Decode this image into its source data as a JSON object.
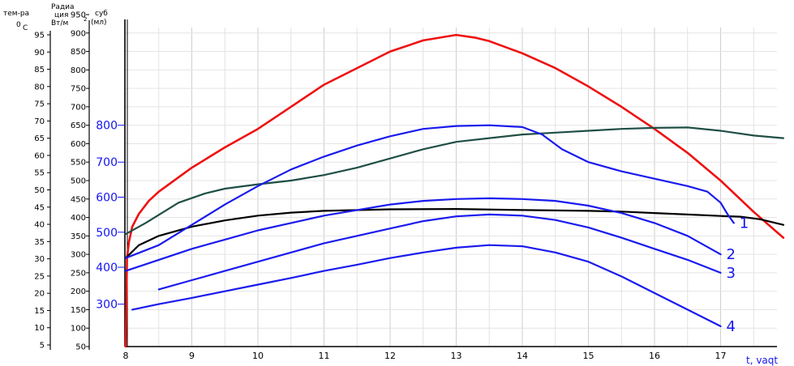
{
  "chart_data": {
    "type": "line",
    "xlabel": "t, vaqt",
    "x_ticks": [
      "8",
      "9",
      "10",
      "11",
      "12",
      "13",
      "14",
      "15",
      "16",
      "17"
    ],
    "xlim": [
      8,
      17.5
    ],
    "headers": {
      "temp": [
        "тем-ра",
        "0",
        "C"
      ],
      "radiation": [
        "Радиа",
        "ция",
        "Вт/м",
        "2"
      ],
      "substance": [
        "cуб",
        "(мл)"
      ]
    },
    "axes": {
      "temperature": {
        "unit": "°C",
        "range": [
          5,
          95
        ],
        "ticks": [
          "95",
          "90",
          "85",
          "80",
          "75",
          "70",
          "65",
          "60",
          "55",
          "50",
          "45",
          "40",
          "35",
          "30",
          "25",
          "20",
          "15",
          "10",
          "5"
        ]
      },
      "radiation": {
        "unit": "Вт/м²",
        "range": [
          50,
          950
        ],
        "ticks": [
          "950",
          "900",
          "850",
          "800",
          "750",
          "700",
          "650",
          "600",
          "550",
          "500",
          "450",
          "400",
          "350",
          "300",
          "250",
          "200",
          "150",
          "100",
          "50"
        ]
      },
      "substance": {
        "unit": "мл",
        "ticks": [
          "800",
          "700",
          "600",
          "500",
          "400",
          "300"
        ]
      }
    },
    "series": [
      {
        "name": "",
        "color": "#ee1111",
        "scale": "radiation",
        "points": [
          [
            8.0,
            50
          ],
          [
            8.02,
            290
          ],
          [
            8.05,
            335
          ],
          [
            8.1,
            375
          ],
          [
            8.2,
            410
          ],
          [
            8.35,
            445
          ],
          [
            8.5,
            470
          ],
          [
            9,
            535
          ],
          [
            9.5,
            590
          ],
          [
            10,
            640
          ],
          [
            10.5,
            700
          ],
          [
            11,
            760
          ],
          [
            11.5,
            805
          ],
          [
            12,
            850
          ],
          [
            12.5,
            880
          ],
          [
            13,
            895
          ],
          [
            13.3,
            887
          ],
          [
            13.5,
            878
          ],
          [
            14,
            845
          ],
          [
            14.5,
            805
          ],
          [
            15,
            755
          ],
          [
            15.5,
            700
          ],
          [
            16,
            640
          ],
          [
            16.5,
            575
          ],
          [
            17,
            500
          ],
          [
            17.5,
            415
          ],
          [
            17.95,
            345
          ]
        ]
      },
      {
        "name": "",
        "color": "#1f4f45",
        "scale": "radiation",
        "points": [
          [
            8.0,
            355
          ],
          [
            8.3,
            385
          ],
          [
            8.8,
            440
          ],
          [
            9.2,
            465
          ],
          [
            9.5,
            478
          ],
          [
            10,
            490
          ],
          [
            10.5,
            500
          ],
          [
            11,
            515
          ],
          [
            11.5,
            535
          ],
          [
            12,
            560
          ],
          [
            12.5,
            585
          ],
          [
            13,
            605
          ],
          [
            13.5,
            615
          ],
          [
            14,
            625
          ],
          [
            14.5,
            630
          ],
          [
            15,
            635
          ],
          [
            15.5,
            640
          ],
          [
            16,
            643
          ],
          [
            16.5,
            644
          ],
          [
            17,
            635
          ],
          [
            17.5,
            622
          ],
          [
            17.95,
            615
          ]
        ]
      },
      {
        "name": "",
        "color": "#000000",
        "scale": "radiation",
        "points": [
          [
            8.0,
            290
          ],
          [
            8.2,
            325
          ],
          [
            8.5,
            350
          ],
          [
            9,
            375
          ],
          [
            9.5,
            392
          ],
          [
            10,
            405
          ],
          [
            10.5,
            413
          ],
          [
            11,
            418
          ],
          [
            12,
            422
          ],
          [
            13,
            423
          ],
          [
            14,
            420
          ],
          [
            15,
            418
          ],
          [
            15.5,
            416
          ],
          [
            16,
            412
          ],
          [
            16.5,
            408
          ],
          [
            17,
            404
          ],
          [
            17.3,
            402
          ],
          [
            17.6,
            395
          ],
          [
            17.95,
            380
          ]
        ]
      },
      {
        "name": "1",
        "color": "#1a1aee",
        "scale": "radiation",
        "points": [
          [
            8.0,
            290
          ],
          [
            8.5,
            325
          ],
          [
            9,
            380
          ],
          [
            9.5,
            435
          ],
          [
            10,
            485
          ],
          [
            10.5,
            530
          ],
          [
            11,
            565
          ],
          [
            11.5,
            595
          ],
          [
            12,
            620
          ],
          [
            12.5,
            640
          ],
          [
            13,
            648
          ],
          [
            13.5,
            650
          ],
          [
            14,
            645
          ],
          [
            14.3,
            625
          ],
          [
            14.6,
            585
          ],
          [
            15,
            550
          ],
          [
            15.5,
            525
          ],
          [
            16,
            505
          ],
          [
            16.5,
            485
          ],
          [
            16.8,
            470
          ],
          [
            17,
            440
          ],
          [
            17.1,
            410
          ],
          [
            17.2,
            385
          ]
        ]
      },
      {
        "name": "2",
        "color": "#1a1aee",
        "scale": "radiation",
        "points": [
          [
            8.0,
            255
          ],
          [
            8.5,
            285
          ],
          [
            9,
            315
          ],
          [
            9.5,
            340
          ],
          [
            10,
            365
          ],
          [
            10.5,
            385
          ],
          [
            11,
            405
          ],
          [
            11.5,
            420
          ],
          [
            12,
            435
          ],
          [
            12.5,
            445
          ],
          [
            13,
            450
          ],
          [
            13.5,
            452
          ],
          [
            14,
            450
          ],
          [
            14.5,
            445
          ],
          [
            15,
            432
          ],
          [
            15.5,
            412
          ],
          [
            16,
            385
          ],
          [
            16.5,
            350
          ],
          [
            17,
            300
          ]
        ]
      },
      {
        "name": "3",
        "color": "#1a1aee",
        "scale": "radiation",
        "points": [
          [
            8.5,
            205
          ],
          [
            9,
            230
          ],
          [
            9.5,
            255
          ],
          [
            10,
            280
          ],
          [
            10.5,
            305
          ],
          [
            11,
            330
          ],
          [
            11.5,
            350
          ],
          [
            12,
            370
          ],
          [
            12.5,
            390
          ],
          [
            13,
            403
          ],
          [
            13.5,
            408
          ],
          [
            14,
            405
          ],
          [
            14.5,
            393
          ],
          [
            15,
            373
          ],
          [
            15.5,
            345
          ],
          [
            16,
            315
          ],
          [
            16.5,
            285
          ],
          [
            17,
            250
          ]
        ]
      },
      {
        "name": "4",
        "color": "#1a1aee",
        "scale": "radiation",
        "points": [
          [
            8.1,
            150
          ],
          [
            8.5,
            165
          ],
          [
            9,
            182
          ],
          [
            9.5,
            200
          ],
          [
            10,
            218
          ],
          [
            10.5,
            236
          ],
          [
            11,
            255
          ],
          [
            11.5,
            272
          ],
          [
            12,
            290
          ],
          [
            12.5,
            305
          ],
          [
            13,
            318
          ],
          [
            13.5,
            325
          ],
          [
            14,
            322
          ],
          [
            14.5,
            305
          ],
          [
            15,
            280
          ],
          [
            15.5,
            240
          ],
          [
            16,
            195
          ],
          [
            16.5,
            150
          ],
          [
            17,
            105
          ]
        ]
      }
    ]
  }
}
